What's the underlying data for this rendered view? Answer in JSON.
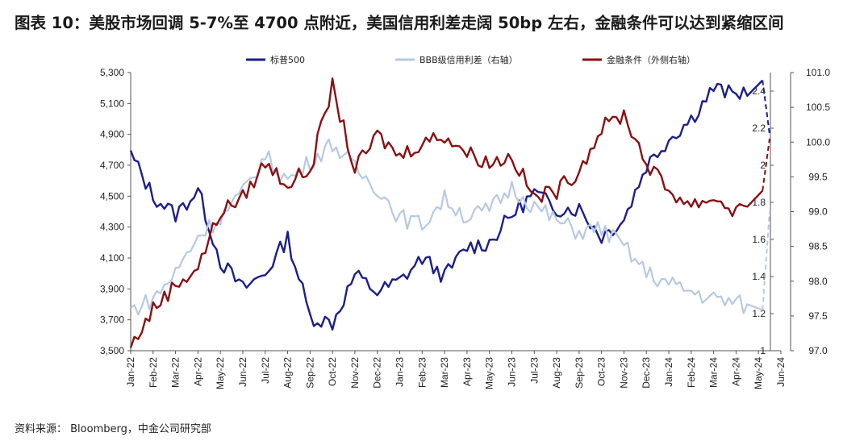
{
  "title": "图表 10：美股市场回调 5-7%至 4700 点附近，美国信用利差走阔 50bp 左右，金融条件可以达到紧缩区间",
  "source": "资料来源：   Bloomberg，中金公司研究部",
  "colors": {
    "spx": "#1b1e8c",
    "bbb": "#b7c9e2",
    "fci": "#8b0f12"
  },
  "chart_data": {
    "type": "line",
    "title": "图表 10：美股市场回调 5-7%至 4700 点附近，美国信用利差走阔 50bp 左右，金融条件可以达到紧缩区间",
    "categories": [
      "Jan-22",
      "Feb-22",
      "Mar-22",
      "Apr-22",
      "May-22",
      "Jun-22",
      "Jul-22",
      "Aug-22",
      "Sep-22",
      "Oct-22",
      "Nov-22",
      "Dec-22",
      "Jan-23",
      "Feb-23",
      "Mar-23",
      "Apr-23",
      "May-23",
      "Jun-23",
      "Jul-23",
      "Aug-23",
      "Sep-23",
      "Oct-23",
      "Nov-23",
      "Dec-23",
      "Jan-24",
      "Feb-24",
      "Mar-24",
      "Apr-24",
      "May-24",
      "Jun-24"
    ],
    "y_left": {
      "min": 3500,
      "max": 5300,
      "ticks": [
        "3,500",
        "3,700",
        "3,900",
        "4,100",
        "4,300",
        "4,500",
        "4,700",
        "4,900",
        "5,100",
        "5,300"
      ]
    },
    "y_right1": {
      "min": 1,
      "max": 2.5,
      "ticks": [
        "1",
        "1.2",
        "1.4",
        "1.6",
        "1.8",
        "2",
        "2.2",
        "2.4"
      ]
    },
    "y_right2": {
      "min": 97.0,
      "max": 101.0,
      "ticks": [
        "97.0",
        "97.5",
        "98.0",
        "98.5",
        "99.0",
        "99.5",
        "100.0",
        "100.5",
        "101.0"
      ]
    },
    "series": [
      {
        "name": "标普500",
        "axis": "left",
        "values": [
          4770,
          4500,
          4380,
          4540,
          4080,
          3900,
          4000,
          4230,
          3720,
          3680,
          3990,
          3880,
          3950,
          4100,
          3980,
          4170,
          4200,
          4380,
          4520,
          4420,
          4420,
          4240,
          4350,
          4700,
          4870,
          5000,
          5200,
          5150,
          5250,
          5150
        ],
        "projection": 4900
      },
      {
        "name": "BBB级信用利差（右轴）",
        "axis": "right1",
        "values": [
          1.22,
          1.28,
          1.42,
          1.62,
          1.72,
          1.85,
          2.05,
          1.92,
          2.02,
          2.12,
          1.98,
          1.88,
          1.72,
          1.68,
          1.82,
          1.72,
          1.76,
          1.88,
          1.78,
          1.7,
          1.64,
          1.66,
          1.56,
          1.42,
          1.36,
          1.32,
          1.28,
          1.26,
          1.22,
          1.2
        ],
        "projection": 1.75
      },
      {
        "name": "金融条件（外侧右轴）",
        "axis": "right2",
        "values": [
          97.05,
          97.6,
          97.95,
          98.2,
          99.0,
          99.2,
          99.7,
          99.4,
          99.6,
          100.8,
          99.6,
          100.1,
          99.8,
          100.0,
          100.1,
          99.85,
          99.7,
          99.8,
          99.2,
          99.3,
          99.6,
          100.2,
          100.4,
          99.7,
          99.3,
          99.1,
          99.2,
          99.0,
          99.3,
          99.6
        ],
        "projection": 100.05
      }
    ],
    "grid": false,
    "legend": "top"
  }
}
